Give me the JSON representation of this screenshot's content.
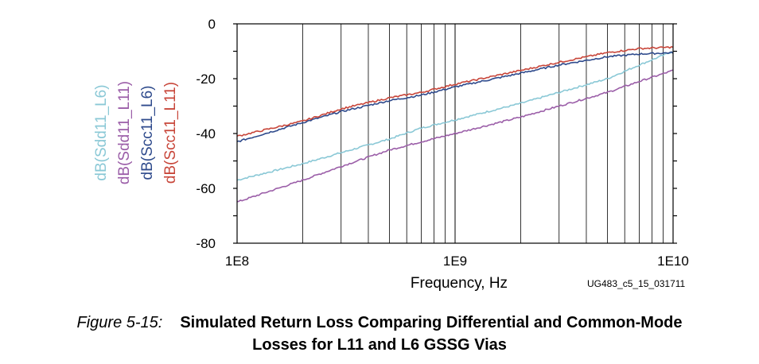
{
  "chart_data": {
    "type": "line",
    "xlabel": "Frequency, Hz",
    "ylabel": "",
    "x_scale": "log",
    "xlim": [
      100000000,
      10000000000
    ],
    "ylim": [
      -80,
      0
    ],
    "x_ticks": [
      100000000,
      1000000000,
      10000000000
    ],
    "x_tick_labels": [
      "1E8",
      "1E9",
      "1E10"
    ],
    "y_ticks": [
      0,
      -20,
      -40,
      -60,
      -80
    ],
    "y_tick_labels": [
      "0",
      "-20",
      "-40",
      "-60",
      "-80"
    ],
    "grid": "vertical log decades",
    "legend_placement": "left, rotated vertical labels",
    "figure_id": "UG483_c5_15_031711",
    "x": [
      100000000,
      200000000,
      300000000,
      500000000,
      700000000,
      1000000000,
      2000000000,
      3000000000,
      5000000000,
      7000000000,
      10000000000
    ],
    "series": [
      {
        "name": "dB(Sdd11_L6)",
        "color": "#8ac8d6",
        "values": [
          -57,
          -51,
          -47,
          -42,
          -38,
          -35,
          -29,
          -25,
          -20,
          -15,
          -10
        ]
      },
      {
        "name": "dB(Sdd11_L11)",
        "color": "#9b5ea8",
        "values": [
          -65,
          -57,
          -52,
          -46,
          -43,
          -40,
          -34,
          -30,
          -25,
          -21,
          -17
        ]
      },
      {
        "name": "dB(Scc11_L6)",
        "color": "#2e4a8c",
        "values": [
          -43,
          -36,
          -32,
          -28,
          -26,
          -23,
          -18,
          -15,
          -12,
          -11,
          -10.5
        ]
      },
      {
        "name": "dB(Scc11_L11)",
        "color": "#c8463a",
        "values": [
          -41,
          -35.5,
          -31,
          -27,
          -25,
          -22,
          -17,
          -14,
          -10.5,
          -9,
          -8.5
        ]
      }
    ]
  },
  "caption": {
    "number": "Figure 5-15:",
    "title_line1": "Simulated Return Loss Comparing Differential and Common-Mode",
    "title_line2": "Losses for L11 and L6 GSSG Vias"
  }
}
